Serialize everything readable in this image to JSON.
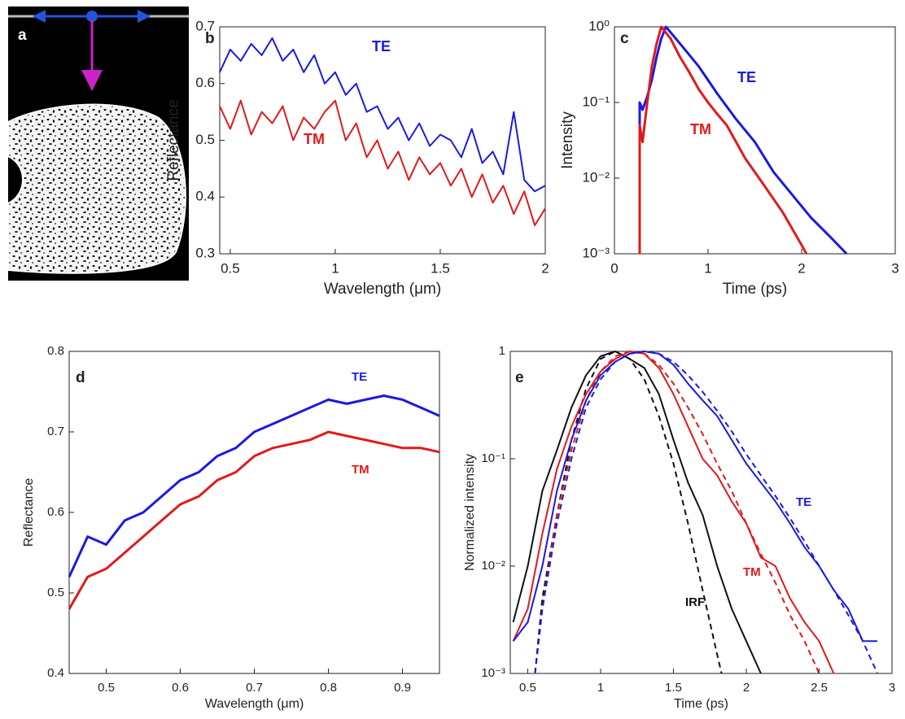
{
  "panel_a": {
    "label": "a"
  },
  "chart_data": [
    {
      "type": "line",
      "panel": "b",
      "xlabel": "Wavelength (μm)",
      "ylabel": "Reflectance",
      "xlim": [
        0.45,
        2
      ],
      "xticks": [
        0.5,
        1,
        1.5,
        2
      ],
      "ylim": [
        0.3,
        0.7
      ],
      "yticks": [
        0.3,
        0.4,
        0.5,
        0.6,
        0.7
      ],
      "series": [
        {
          "name": "TE",
          "color": "#1a1ae0",
          "x": [
            0.45,
            0.5,
            0.55,
            0.6,
            0.65,
            0.7,
            0.75,
            0.8,
            0.85,
            0.9,
            0.95,
            1.0,
            1.05,
            1.1,
            1.15,
            1.2,
            1.25,
            1.3,
            1.35,
            1.4,
            1.45,
            1.5,
            1.55,
            1.6,
            1.65,
            1.7,
            1.75,
            1.8,
            1.85,
            1.9,
            1.95,
            2.0
          ],
          "values": [
            0.62,
            0.66,
            0.64,
            0.67,
            0.65,
            0.68,
            0.64,
            0.66,
            0.62,
            0.65,
            0.6,
            0.62,
            0.58,
            0.6,
            0.55,
            0.56,
            0.52,
            0.54,
            0.5,
            0.53,
            0.49,
            0.51,
            0.5,
            0.47,
            0.52,
            0.46,
            0.48,
            0.44,
            0.55,
            0.43,
            0.41,
            0.42
          ]
        },
        {
          "name": "TM",
          "color": "#e01a1a",
          "x": [
            0.45,
            0.5,
            0.55,
            0.6,
            0.65,
            0.7,
            0.75,
            0.8,
            0.85,
            0.9,
            0.95,
            1.0,
            1.05,
            1.1,
            1.15,
            1.2,
            1.25,
            1.3,
            1.35,
            1.4,
            1.45,
            1.5,
            1.55,
            1.6,
            1.65,
            1.7,
            1.75,
            1.8,
            1.85,
            1.9,
            1.95,
            2.0
          ],
          "values": [
            0.56,
            0.52,
            0.57,
            0.51,
            0.55,
            0.53,
            0.56,
            0.5,
            0.54,
            0.52,
            0.55,
            0.57,
            0.5,
            0.53,
            0.47,
            0.5,
            0.45,
            0.48,
            0.43,
            0.47,
            0.44,
            0.46,
            0.42,
            0.45,
            0.4,
            0.44,
            0.39,
            0.42,
            0.37,
            0.41,
            0.35,
            0.38
          ]
        }
      ]
    },
    {
      "type": "line",
      "panel": "c",
      "xlabel": "Time (ps)",
      "ylabel": "Intensity",
      "yscale": "log",
      "xlim": [
        0,
        3
      ],
      "xticks": [
        0,
        1,
        2,
        3
      ],
      "ylim": [
        0.001,
        1
      ],
      "yticks": [
        {
          "value": 0.001,
          "label": "10⁻³"
        },
        {
          "value": 0.01,
          "label": "10⁻²"
        },
        {
          "value": 0.1,
          "label": "10⁻¹"
        },
        {
          "value": 1,
          "label": "10⁰"
        }
      ],
      "series": [
        {
          "name": "TE",
          "color": "#1a1ae0",
          "x": [
            0.27,
            0.27,
            0.3,
            0.35,
            0.4,
            0.45,
            0.5,
            0.55,
            0.7,
            0.9,
            1.1,
            1.3,
            1.5,
            1.7,
            1.9,
            2.1,
            2.3,
            2.48
          ],
          "values": [
            0.001,
            0.1,
            0.08,
            0.12,
            0.2,
            0.4,
            0.7,
            1,
            0.6,
            0.3,
            0.13,
            0.06,
            0.03,
            0.012,
            0.006,
            0.003,
            0.0017,
            0.001
          ]
        },
        {
          "name": "TM",
          "color": "#e01a1a",
          "x": [
            0.27,
            0.27,
            0.3,
            0.35,
            0.4,
            0.45,
            0.5,
            0.6,
            0.7,
            0.8,
            0.9,
            1.0,
            1.1,
            1.2,
            1.4,
            1.6,
            1.8,
            2.0,
            2.05
          ],
          "values": [
            0.001,
            0.05,
            0.03,
            0.1,
            0.3,
            0.6,
            1,
            0.7,
            0.4,
            0.25,
            0.15,
            0.1,
            0.07,
            0.05,
            0.018,
            0.008,
            0.0035,
            0.0013,
            0.001
          ]
        }
      ]
    },
    {
      "type": "line",
      "panel": "d",
      "xlabel": "Wavelength (μm)",
      "ylabel": "Reflectance",
      "xlim": [
        0.45,
        0.95
      ],
      "xticks": [
        0.5,
        0.6,
        0.7,
        0.8,
        0.9
      ],
      "ylim": [
        0.4,
        0.8
      ],
      "yticks": [
        0.4,
        0.5,
        0.6,
        0.7,
        0.8
      ],
      "series": [
        {
          "name": "TE",
          "color": "#1a1ae0",
          "x": [
            0.45,
            0.475,
            0.5,
            0.525,
            0.55,
            0.575,
            0.6,
            0.625,
            0.65,
            0.675,
            0.7,
            0.725,
            0.75,
            0.775,
            0.8,
            0.825,
            0.85,
            0.875,
            0.9,
            0.925,
            0.95
          ],
          "values": [
            0.52,
            0.57,
            0.56,
            0.59,
            0.6,
            0.62,
            0.64,
            0.65,
            0.67,
            0.68,
            0.7,
            0.71,
            0.72,
            0.73,
            0.74,
            0.735,
            0.74,
            0.745,
            0.74,
            0.73,
            0.72
          ]
        },
        {
          "name": "TM",
          "color": "#e01a1a",
          "x": [
            0.45,
            0.475,
            0.5,
            0.525,
            0.55,
            0.575,
            0.6,
            0.625,
            0.65,
            0.675,
            0.7,
            0.725,
            0.75,
            0.775,
            0.8,
            0.825,
            0.85,
            0.875,
            0.9,
            0.925,
            0.95
          ],
          "values": [
            0.48,
            0.52,
            0.53,
            0.55,
            0.57,
            0.59,
            0.61,
            0.62,
            0.64,
            0.65,
            0.67,
            0.68,
            0.685,
            0.69,
            0.7,
            0.695,
            0.69,
            0.685,
            0.68,
            0.68,
            0.675
          ]
        }
      ]
    },
    {
      "type": "line",
      "panel": "e",
      "xlabel": "Time (ps)",
      "ylabel": "Normalized intensity",
      "yscale": "log",
      "xlim": [
        0.38,
        3
      ],
      "xticks": [
        0.5,
        1,
        1.5,
        2,
        2.5,
        3
      ],
      "ylim": [
        0.001,
        1
      ],
      "yticks": [
        {
          "value": 0.001,
          "label": "10⁻³"
        },
        {
          "value": 0.01,
          "label": "10⁻²"
        },
        {
          "value": 0.1,
          "label": "10⁻¹"
        },
        1
      ],
      "series": [
        {
          "name": "IRF",
          "color": "#111111",
          "x": [
            0.4,
            0.5,
            0.6,
            0.7,
            0.8,
            0.9,
            1.0,
            1.1,
            1.2,
            1.3,
            1.4,
            1.5,
            1.6,
            1.7,
            1.8,
            1.9,
            2.0,
            2.1
          ],
          "values": [
            0.003,
            0.01,
            0.05,
            0.12,
            0.3,
            0.6,
            0.9,
            1,
            0.85,
            0.7,
            0.4,
            0.15,
            0.06,
            0.03,
            0.01,
            0.004,
            0.002,
            0.001
          ]
        },
        {
          "color": "#111111",
          "dash": true,
          "x": [
            0.55,
            0.6,
            0.7,
            0.8,
            0.9,
            1.0,
            1.1,
            1.2,
            1.3,
            1.4,
            1.5,
            1.6,
            1.7,
            1.8,
            1.83
          ],
          "values": [
            0.001,
            0.005,
            0.03,
            0.15,
            0.45,
            0.85,
            1,
            0.85,
            0.55,
            0.25,
            0.09,
            0.025,
            0.006,
            0.0015,
            0.001
          ]
        },
        {
          "name": "TM",
          "color": "#e01a1a",
          "x": [
            0.4,
            0.5,
            0.6,
            0.7,
            0.8,
            0.9,
            1.0,
            1.1,
            1.2,
            1.3,
            1.4,
            1.5,
            1.6,
            1.7,
            1.8,
            1.9,
            2.0,
            2.1,
            2.2,
            2.3,
            2.4,
            2.5,
            2.6
          ],
          "values": [
            0.002,
            0.004,
            0.02,
            0.08,
            0.2,
            0.4,
            0.65,
            0.85,
            1,
            0.95,
            0.7,
            0.4,
            0.2,
            0.1,
            0.07,
            0.04,
            0.025,
            0.012,
            0.01,
            0.005,
            0.003,
            0.002,
            0.001
          ]
        },
        {
          "color": "#e01a1a",
          "dash": true,
          "x": [
            0.55,
            0.6,
            0.7,
            0.8,
            0.9,
            1.0,
            1.1,
            1.2,
            1.3,
            1.4,
            1.5,
            1.6,
            1.7,
            1.8,
            1.9,
            2.0,
            2.1,
            2.2,
            2.3,
            2.4,
            2.5
          ],
          "values": [
            0.001,
            0.004,
            0.03,
            0.12,
            0.35,
            0.65,
            0.9,
            1,
            0.95,
            0.75,
            0.5,
            0.3,
            0.17,
            0.09,
            0.05,
            0.025,
            0.013,
            0.007,
            0.0035,
            0.002,
            0.001
          ]
        },
        {
          "name": "TE",
          "color": "#1a1ae0",
          "x": [
            0.4,
            0.5,
            0.6,
            0.7,
            0.8,
            0.9,
            1.0,
            1.1,
            1.2,
            1.3,
            1.4,
            1.5,
            1.6,
            1.7,
            1.8,
            1.9,
            2.0,
            2.1,
            2.2,
            2.3,
            2.4,
            2.5,
            2.6,
            2.7,
            2.8,
            2.9
          ],
          "values": [
            0.002,
            0.003,
            0.01,
            0.05,
            0.15,
            0.35,
            0.6,
            0.8,
            0.95,
            1,
            0.95,
            0.75,
            0.5,
            0.35,
            0.25,
            0.15,
            0.09,
            0.06,
            0.04,
            0.025,
            0.015,
            0.01,
            0.006,
            0.004,
            0.002,
            0.002
          ]
        },
        {
          "color": "#1a1ae0",
          "dash": true,
          "x": [
            0.55,
            0.6,
            0.7,
            0.8,
            0.9,
            1.0,
            1.1,
            1.2,
            1.3,
            1.4,
            1.5,
            1.6,
            1.7,
            1.8,
            1.9,
            2.0,
            2.1,
            2.2,
            2.3,
            2.4,
            2.5,
            2.6,
            2.7,
            2.8,
            2.9
          ],
          "values": [
            0.001,
            0.004,
            0.025,
            0.1,
            0.3,
            0.55,
            0.8,
            0.95,
            1,
            0.95,
            0.8,
            0.6,
            0.42,
            0.28,
            0.18,
            0.11,
            0.07,
            0.045,
            0.028,
            0.017,
            0.01,
            0.006,
            0.0035,
            0.002,
            0.001
          ]
        }
      ]
    }
  ]
}
